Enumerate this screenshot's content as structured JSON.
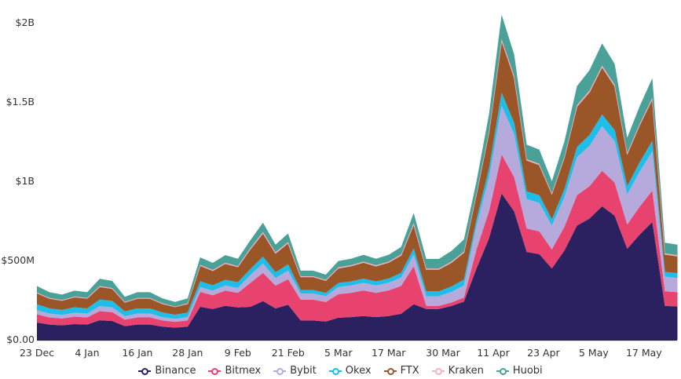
{
  "chart_data": {
    "type": "area",
    "stacked": true,
    "title": "",
    "xlabel": "",
    "ylabel": "",
    "x_unit": "days since 23 Dec",
    "x": [
      0,
      3,
      6,
      9,
      12,
      15,
      18,
      21,
      24,
      27,
      30,
      33,
      36,
      39,
      42,
      45,
      48,
      51,
      54,
      57,
      60,
      63,
      66,
      69,
      72,
      75,
      78,
      81,
      84,
      87,
      90,
      93,
      96,
      99,
      102,
      105,
      108,
      111,
      114,
      117,
      120,
      123,
      126,
      129,
      132,
      135,
      138,
      141,
      144,
      147,
      150,
      153
    ],
    "x_ticks": [
      {
        "day": 0,
        "label": "23 Dec"
      },
      {
        "day": 12,
        "label": "4 Jan"
      },
      {
        "day": 24,
        "label": "16 Jan"
      },
      {
        "day": 36,
        "label": "28 Jan"
      },
      {
        "day": 48,
        "label": "9 Feb"
      },
      {
        "day": 60,
        "label": "21 Feb"
      },
      {
        "day": 72,
        "label": "5 Mar"
      },
      {
        "day": 84,
        "label": "17 Mar"
      },
      {
        "day": 97,
        "label": "30 Mar"
      },
      {
        "day": 109,
        "label": "11 Apr"
      },
      {
        "day": 121,
        "label": "23 Apr"
      },
      {
        "day": 133,
        "label": "5 May"
      },
      {
        "day": 145,
        "label": "17 May"
      }
    ],
    "y_unit": "USD millions",
    "ylim": [
      0,
      2000
    ],
    "y_ticks": [
      {
        "value": 0,
        "label": "$0.00"
      },
      {
        "value": 500,
        "label": "$500M"
      },
      {
        "value": 1000,
        "label": "$1B"
      },
      {
        "value": 1500,
        "label": "$1.5B"
      },
      {
        "value": 2000,
        "label": "$2B"
      }
    ],
    "grid": false,
    "legend_position": "bottom",
    "series": [
      {
        "name": "Binance",
        "color": "#2b2160",
        "values": [
          109,
          96,
          91,
          99,
          96,
          123,
          118,
          86,
          96,
          96,
          83,
          77,
          83,
          208,
          194,
          214,
          204,
          208,
          244,
          198,
          221,
          122,
          122,
          115,
          139,
          143,
          150,
          143,
          150,
          164,
          224,
          194,
          194,
          213,
          241,
          450,
          641,
          923,
          810,
          554,
          540,
          450,
          563,
          720,
          765,
          842,
          783,
          574,
          664,
          743,
          214,
          210
        ]
      },
      {
        "name": "Bitmex",
        "color": "#e8436e",
        "values": [
          51,
          45,
          43,
          47,
          45,
          58,
          56,
          41,
          45,
          45,
          39,
          36,
          39,
          94,
          87,
          96,
          92,
          151,
          178,
          144,
          161,
          131,
          131,
          123,
          149,
          153,
          161,
          153,
          161,
          176,
          240,
          20,
          20,
          22,
          25,
          120,
          171,
          246,
          216,
          148,
          144,
          120,
          150,
          192,
          204,
          224,
          209,
          153,
          177,
          198,
          92,
          90
        ]
      },
      {
        "name": "Bybit",
        "color": "#b6a9dc",
        "values": [
          27,
          24,
          23,
          25,
          24,
          31,
          30,
          22,
          24,
          24,
          21,
          19,
          21,
          31,
          29,
          32,
          31,
          50,
          59,
          48,
          54,
          39,
          39,
          37,
          45,
          46,
          48,
          46,
          48,
          53,
          72,
          61,
          61,
          67,
          76,
          150,
          214,
          308,
          270,
          185,
          180,
          150,
          188,
          240,
          255,
          281,
          261,
          191,
          221,
          248,
          92,
          90
        ]
      },
      {
        "name": "Okex",
        "color": "#1ebee8",
        "values": [
          37,
          33,
          31,
          34,
          33,
          42,
          41,
          30,
          33,
          33,
          29,
          26,
          29,
          36,
          34,
          37,
          36,
          38,
          44,
          36,
          40,
          22,
          22,
          21,
          25,
          26,
          27,
          26,
          27,
          29,
          40,
          31,
          31,
          34,
          38,
          40,
          57,
          82,
          72,
          49,
          48,
          40,
          50,
          64,
          68,
          75,
          70,
          51,
          59,
          66,
          31,
          30
        ]
      },
      {
        "name": "FTX",
        "color": "#9b5628",
        "values": [
          71,
          63,
          60,
          65,
          63,
          81,
          78,
          57,
          63,
          63,
          55,
          50,
          55,
          99,
          92,
          102,
          97,
          126,
          148,
          120,
          134,
          83,
          83,
          78,
          94,
          97,
          102,
          97,
          102,
          111,
          152,
          138,
          138,
          151,
          171,
          160,
          228,
          328,
          288,
          197,
          192,
          160,
          200,
          256,
          272,
          299,
          278,
          204,
          236,
          264,
          110,
          108
        ]
      },
      {
        "name": "Kraken",
        "color": "#f3b3c8",
        "values": [
          3,
          3,
          3,
          3,
          3,
          4,
          4,
          3,
          3,
          3,
          3,
          2,
          3,
          5,
          5,
          5,
          5,
          6,
          7,
          6,
          7,
          4,
          4,
          4,
          5,
          5,
          5,
          5,
          5,
          6,
          8,
          5,
          5,
          6,
          6,
          5,
          7,
          10,
          9,
          6,
          6,
          5,
          6,
          8,
          9,
          9,
          9,
          6,
          7,
          8,
          6,
          6
        ]
      },
      {
        "name": "Huobi",
        "color": "#4aa197",
        "values": [
          41,
          36,
          34,
          37,
          36,
          46,
          44,
          32,
          36,
          36,
          31,
          29,
          31,
          47,
          44,
          48,
          46,
          50,
          59,
          48,
          54,
          35,
          35,
          33,
          40,
          41,
          43,
          41,
          43,
          47,
          64,
          61,
          61,
          67,
          76,
          75,
          107,
          154,
          135,
          92,
          90,
          75,
          94,
          120,
          128,
          140,
          131,
          96,
          111,
          124,
          67,
          66
        ]
      }
    ]
  }
}
